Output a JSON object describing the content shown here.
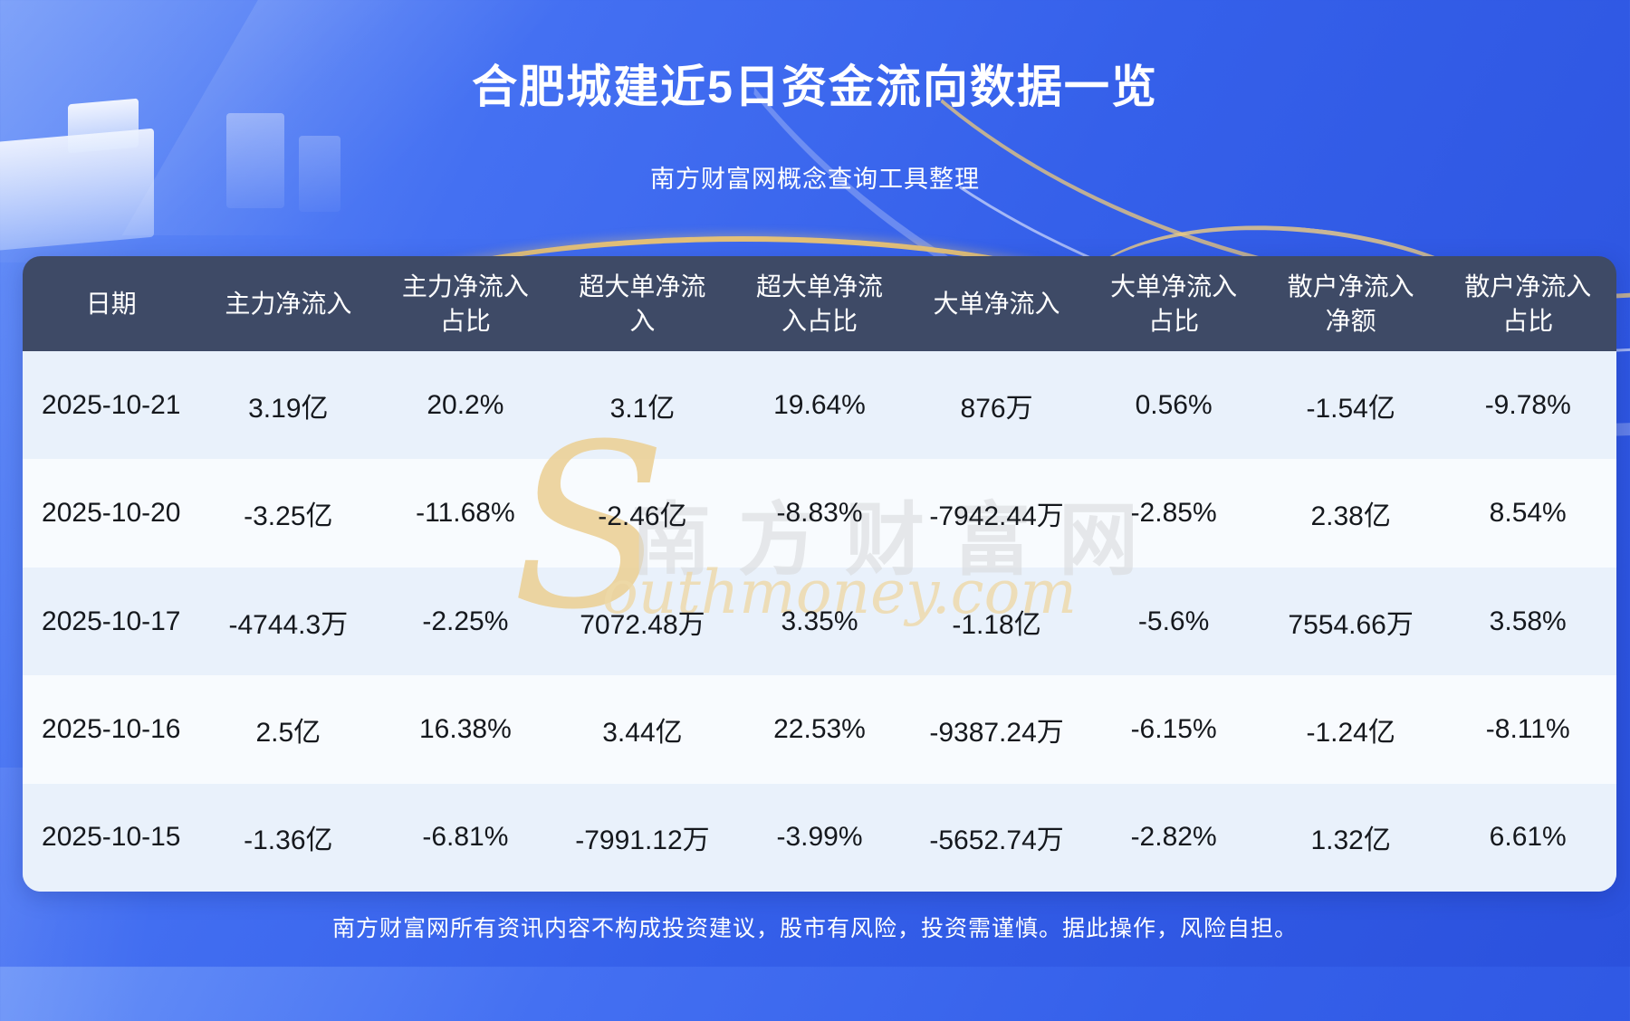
{
  "header": {
    "title": "合肥城建近5日资金流向数据一览",
    "subtitle": "南方财富网概念查询工具整理"
  },
  "footer": {
    "disclaimer": "南方财富网所有资讯内容不构成投资建议，股市有风险，投资需谨慎。据此操作，风险自担。"
  },
  "watermark": {
    "initial": "S",
    "cn": "南方财富网",
    "en": "outhmoney.com"
  },
  "chart_data": {
    "type": "table",
    "title": "合肥城建近5日资金流向数据一览",
    "columns": [
      "日期",
      "主力净流入",
      "主力净流入占比",
      "超大单净流入",
      "超大单净流入占比",
      "大单净流入",
      "大单净流入占比",
      "散户净流入净额",
      "散户净流入占比"
    ],
    "rows": [
      [
        "2025-10-21",
        "3.19亿",
        "20.2%",
        "3.1亿",
        "19.64%",
        "876万",
        "0.56%",
        "-1.54亿",
        "-9.78%"
      ],
      [
        "2025-10-20",
        "-3.25亿",
        "-11.68%",
        "-2.46亿",
        "-8.83%",
        "-7942.44万",
        "-2.85%",
        "2.38亿",
        "8.54%"
      ],
      [
        "2025-10-17",
        "-4744.3万",
        "-2.25%",
        "7072.48万",
        "3.35%",
        "-1.18亿",
        "-5.6%",
        "7554.66万",
        "3.58%"
      ],
      [
        "2025-10-16",
        "2.5亿",
        "16.38%",
        "3.44亿",
        "22.53%",
        "-9387.24万",
        "-6.15%",
        "-1.24亿",
        "-8.11%"
      ],
      [
        "2025-10-15",
        "-1.36亿",
        "-6.81%",
        "-7991.12万",
        "-3.99%",
        "-5652.74万",
        "-2.82%",
        "1.32亿",
        "6.61%"
      ]
    ]
  },
  "colors": {
    "background_blue": "#3560ea",
    "header_navy": "#3e4a66",
    "row_stripe_blue": "#e9f1fb",
    "row_stripe_white": "#f8fbfe",
    "accent_gold": "#ecc571",
    "cell_text": "#15181d",
    "title_text": "#ffffff"
  }
}
